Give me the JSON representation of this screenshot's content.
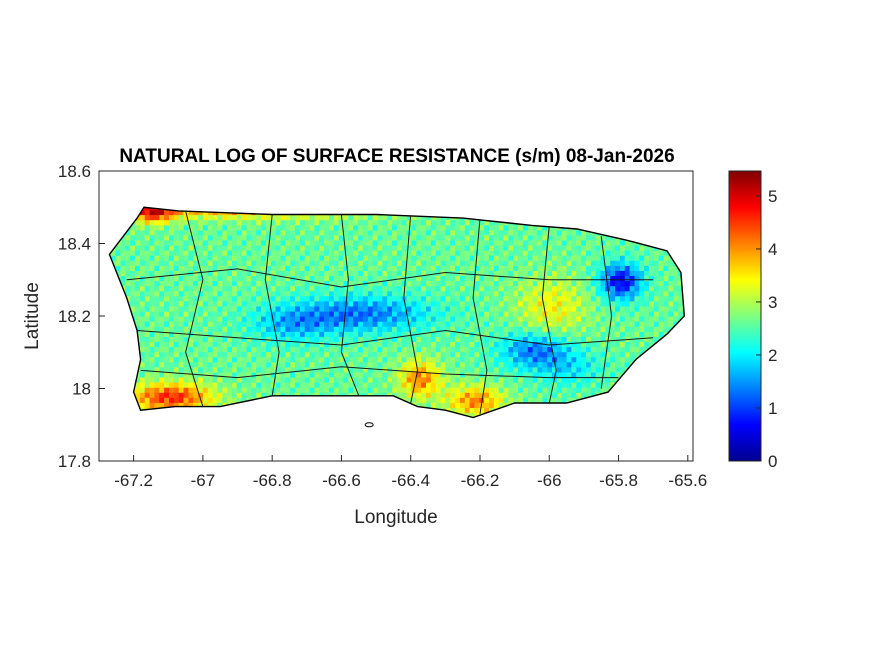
{
  "chart_data": {
    "type": "heatmap",
    "title": "NATURAL LOG OF SURFACE RESISTANCE (s/m) 08-Jan-2026",
    "xlabel": "Longitude",
    "ylabel": "Latitude",
    "xlim": [
      -67.3,
      -65.585
    ],
    "ylim": [
      17.8,
      18.6
    ],
    "xticks": [
      "-67.2",
      "-67",
      "-66.8",
      "-66.6",
      "-66.4",
      "-66.2",
      "-66",
      "-65.8",
      "-65.6"
    ],
    "xtick_values": [
      -67.2,
      -67,
      -66.8,
      -66.6,
      -66.4,
      -66.2,
      -66,
      -65.8,
      -65.6
    ],
    "yticks": [
      "17.8",
      "18",
      "18.2",
      "18.4",
      "18.6"
    ],
    "ytick_values": [
      17.8,
      18,
      18.2,
      18.4,
      18.6
    ],
    "colorbar": {
      "colormap": "jet",
      "range": [
        0,
        5.47
      ],
      "ticks": [
        "0",
        "1",
        "2",
        "3",
        "4",
        "5"
      ],
      "tick_values": [
        0,
        1,
        2,
        3,
        4,
        5
      ]
    },
    "grid": false,
    "boundary_color": "#000000"
  }
}
